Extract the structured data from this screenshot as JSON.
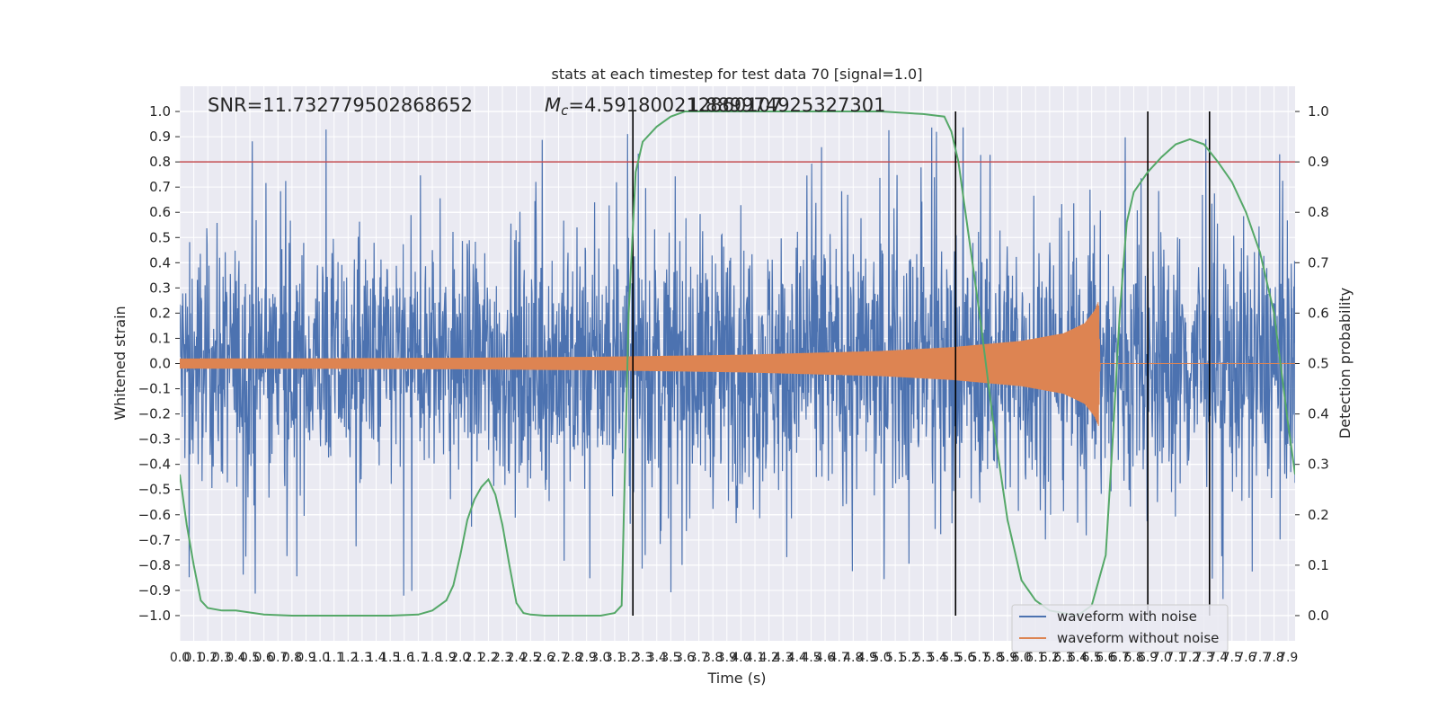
{
  "chart_data": {
    "type": "line",
    "title": "stats at each timestep for test data 70 [signal=1.0]",
    "xlabel": "Time (s)",
    "ylabel": "Whitened strain",
    "y2label": "Detection probability",
    "xlim": [
      0.0,
      7.95
    ],
    "ylim": [
      -1.1,
      1.1
    ],
    "y2lim": [
      -0.05,
      1.05
    ],
    "grid": true,
    "x_ticks": [
      "0.0",
      "0.1",
      "0.2",
      "0.3",
      "0.4",
      "0.5",
      "0.6",
      "0.7",
      "0.8",
      "0.9",
      "1.0",
      "1.1",
      "1.2",
      "1.3",
      "1.4",
      "1.5",
      "1.6",
      "1.7",
      "1.8",
      "1.9",
      "2.0",
      "2.1",
      "2.2",
      "2.3",
      "2.4",
      "2.5",
      "2.6",
      "2.7",
      "2.8",
      "2.9",
      "3.0",
      "3.1",
      "3.2",
      "3.3",
      "3.4",
      "3.5",
      "3.6",
      "3.7",
      "3.8",
      "3.9",
      "4.0",
      "4.1",
      "4.2",
      "4.3",
      "4.4",
      "4.5",
      "4.6",
      "4.7",
      "4.8",
      "4.9",
      "5.0",
      "5.1",
      "5.2",
      "5.3",
      "5.4",
      "5.5",
      "5.6",
      "5.7",
      "5.8",
      "5.9",
      "6.0",
      "6.1",
      "6.2",
      "6.3",
      "6.4",
      "6.5",
      "6.6",
      "6.7",
      "6.8",
      "6.9",
      "7.0",
      "7.1",
      "7.2",
      "7.3",
      "7.4",
      "7.5",
      "7.6",
      "7.7",
      "7.8",
      "7.9"
    ],
    "y_ticks": [
      "1.0",
      "0.9",
      "0.8",
      "0.7",
      "0.6",
      "0.5",
      "0.4",
      "0.3",
      "0.2",
      "0.1",
      "0.0",
      "−0.1",
      "−0.2",
      "−0.3",
      "−0.4",
      "−0.5",
      "−0.6",
      "−0.7",
      "−0.8",
      "−0.9",
      "−1.0"
    ],
    "y2_ticks": [
      "1.0",
      "0.9",
      "0.8",
      "0.7",
      "0.6",
      "0.5",
      "0.4",
      "0.3",
      "0.2",
      "0.1",
      "0.0"
    ],
    "annotations": {
      "snr": "SNR=11.732779502868652",
      "mc_symbol": "M",
      "mc_sub": "c",
      "mc_value": "=4.591800212860107",
      "overlap": "1.889974925327301"
    },
    "threshold": {
      "y2": 0.9,
      "color": "#c44e52"
    },
    "vlines_x": [
      3.23,
      5.53,
      6.9,
      7.34
    ],
    "legend": {
      "position": "bottom-right",
      "entries": [
        "waveform with noise",
        "waveform without noise"
      ]
    },
    "series": [
      {
        "name": "waveform with noise",
        "color": "#4c72b0",
        "description": "dense whitened noise, amplitude mostly within ±0.6 with peaks to about ±1.0",
        "envelope_abs": [
          [
            0.0,
            0.55
          ],
          [
            1.0,
            0.55
          ],
          [
            3.2,
            0.6
          ],
          [
            4.0,
            0.62
          ],
          [
            5.0,
            0.62
          ],
          [
            6.5,
            0.62
          ],
          [
            7.95,
            0.6
          ]
        ]
      },
      {
        "name": "waveform without noise",
        "color": "#dd8452",
        "description": "chirp signal",
        "envelope": [
          [
            0.0,
            0.02
          ],
          [
            1.0,
            0.021
          ],
          [
            2.0,
            0.023
          ],
          [
            3.0,
            0.027
          ],
          [
            4.0,
            0.035
          ],
          [
            5.0,
            0.05
          ],
          [
            5.5,
            0.065
          ],
          [
            6.0,
            0.09
          ],
          [
            6.3,
            0.12
          ],
          [
            6.45,
            0.16
          ],
          [
            6.52,
            0.21
          ],
          [
            6.55,
            0.25
          ],
          [
            6.56,
            0.0
          ],
          [
            7.95,
            0.0
          ]
        ]
      },
      {
        "name": "Detection probability",
        "axis": "right",
        "color": "#55a868",
        "x": [
          0.0,
          0.05,
          0.1,
          0.15,
          0.2,
          0.3,
          0.4,
          0.6,
          0.8,
          1.0,
          1.5,
          1.7,
          1.8,
          1.9,
          1.95,
          2.0,
          2.05,
          2.1,
          2.15,
          2.2,
          2.25,
          2.3,
          2.35,
          2.4,
          2.45,
          2.5,
          2.6,
          3.0,
          3.1,
          3.15,
          3.2,
          3.25,
          3.3,
          3.4,
          3.5,
          3.6,
          3.7,
          3.8,
          5.0,
          5.3,
          5.45,
          5.5,
          5.55,
          5.6,
          5.7,
          5.8,
          5.9,
          6.0,
          6.1,
          6.2,
          6.3,
          6.4,
          6.5,
          6.6,
          6.65,
          6.7,
          6.75,
          6.8,
          6.85,
          6.9,
          7.0,
          7.1,
          7.2,
          7.3,
          7.4,
          7.5,
          7.6,
          7.7,
          7.8,
          7.9,
          7.95
        ],
        "y": [
          0.28,
          0.18,
          0.1,
          0.03,
          0.015,
          0.01,
          0.01,
          0.002,
          0.0,
          0.0,
          0.0,
          0.002,
          0.01,
          0.03,
          0.06,
          0.12,
          0.19,
          0.23,
          0.255,
          0.27,
          0.24,
          0.18,
          0.1,
          0.025,
          0.005,
          0.002,
          0.0,
          0.0,
          0.005,
          0.02,
          0.6,
          0.88,
          0.94,
          0.97,
          0.99,
          1.0,
          1.0,
          1.0,
          1.0,
          0.995,
          0.99,
          0.96,
          0.9,
          0.8,
          0.6,
          0.38,
          0.19,
          0.07,
          0.03,
          0.01,
          0.005,
          0.0,
          0.02,
          0.12,
          0.35,
          0.6,
          0.78,
          0.84,
          0.86,
          0.88,
          0.91,
          0.935,
          0.945,
          0.935,
          0.9,
          0.86,
          0.8,
          0.72,
          0.6,
          0.38,
          0.28
        ]
      }
    ]
  }
}
